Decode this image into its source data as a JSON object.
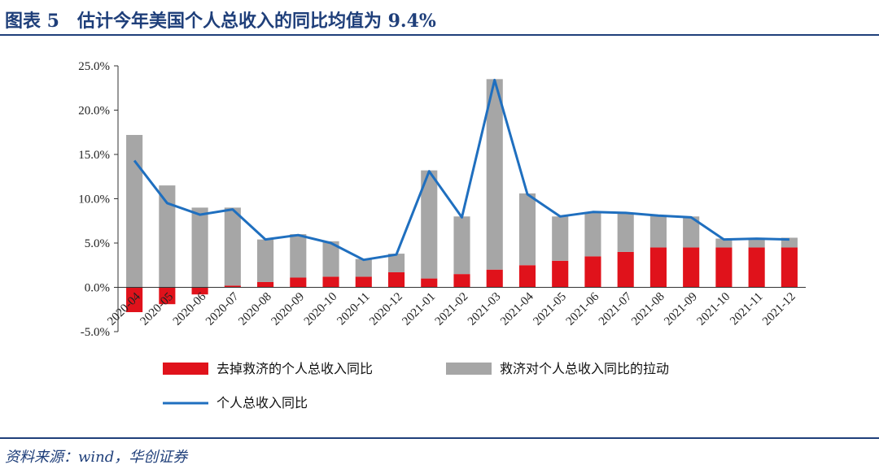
{
  "figure": {
    "title": "图表 5　估计今年美国个人总收入的同比均值为 9.4%",
    "source": "资料来源：wind，华创证券"
  },
  "colors": {
    "base": "#e0121b",
    "stimulus": "#a6a6a6",
    "line": "#1f6fbf",
    "brand": "#1f3f7a"
  },
  "chart_data": {
    "type": "bar",
    "stacked": true,
    "categories": [
      "2020-04",
      "2020-05",
      "2020-06",
      "2020-07",
      "2020-08",
      "2020-09",
      "2020-10",
      "2020-11",
      "2020-12",
      "2021-01",
      "2021-02",
      "2021-03",
      "2021-04",
      "2021-05",
      "2021-06",
      "2021-07",
      "2021-08",
      "2021-09",
      "2021-10",
      "2021-11",
      "2021-12"
    ],
    "series": [
      {
        "name": "去掉救济的个人总收入同比",
        "kind": "bar",
        "values": [
          -2.8,
          -1.9,
          -0.8,
          0.2,
          0.6,
          1.1,
          1.2,
          1.2,
          1.7,
          1.0,
          1.5,
          2.0,
          2.5,
          3.0,
          3.5,
          4.0,
          4.5,
          4.5,
          4.5,
          4.5,
          4.5
        ]
      },
      {
        "name": "救济对个人总收入同比的拉动",
        "kind": "bar",
        "values": [
          17.2,
          11.5,
          9.0,
          9.0,
          5.4,
          6.0,
          5.2,
          3.2,
          3.8,
          13.2,
          8.0,
          23.5,
          10.6,
          8.0,
          8.5,
          8.4,
          8.1,
          8.0,
          5.5,
          5.5,
          5.6
        ]
      },
      {
        "name": "个人总收入同比",
        "kind": "line",
        "values": [
          14.3,
          9.5,
          8.2,
          8.8,
          5.4,
          5.9,
          5.0,
          3.1,
          3.7,
          13.1,
          7.9,
          23.4,
          10.5,
          8.0,
          8.5,
          8.4,
          8.1,
          7.9,
          5.4,
          5.5,
          5.4
        ]
      }
    ],
    "ylim": [
      -5,
      25
    ],
    "yticks": [
      "-5.0%",
      "0.0%",
      "5.0%",
      "10.0%",
      "15.0%",
      "20.0%",
      "25.0%"
    ],
    "ytick_values": [
      -5,
      0,
      5,
      10,
      15,
      20,
      25
    ],
    "legend_position": "bottom",
    "grid": false
  }
}
